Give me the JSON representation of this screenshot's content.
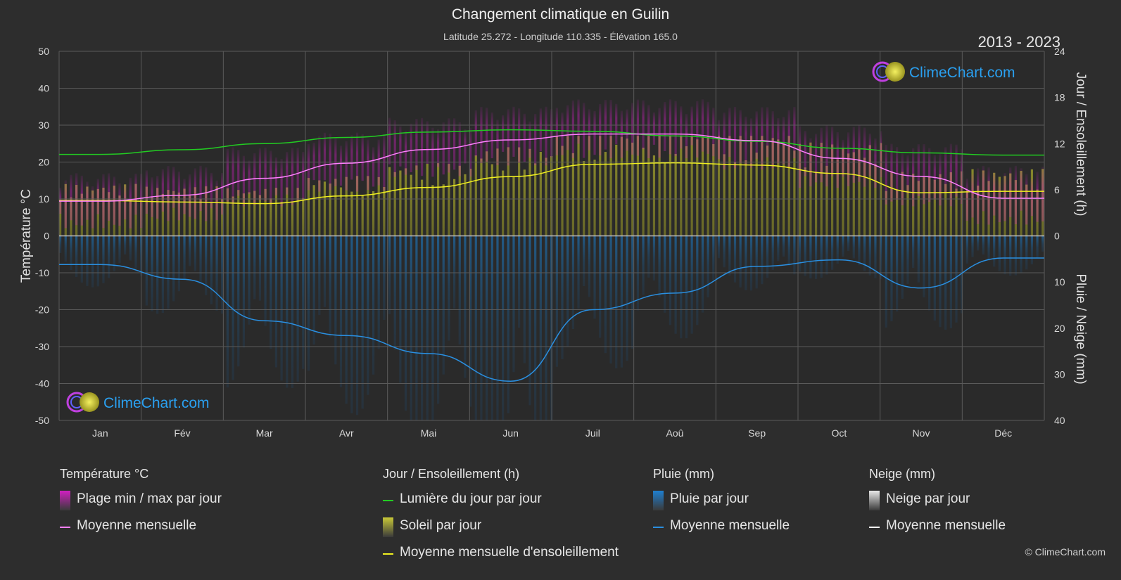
{
  "header": {
    "title": "Changement climatique en Guilin",
    "subtitle": "Latitude 25.272 - Longitude 110.335 - Élévation 165.0",
    "years": "2013 - 2023"
  },
  "brand": {
    "logo_text": "ClimeChart.com",
    "copyright": "© ClimeChart.com"
  },
  "colors": {
    "background": "#2d2d2d",
    "temp_range": "#d020c0",
    "temp_mean": "#ff80ff",
    "daylight": "#22cc22",
    "sunshine_fill": "#9a9a30",
    "sunshine_mean": "#f0f020",
    "rain_fill": "#1f5f8f",
    "rain_mean": "#2a8fe0",
    "snow_mean": "#ffffff"
  },
  "chart_data": {
    "type": "line",
    "x_label_months": [
      "Jan",
      "Fév",
      "Mar",
      "Avr",
      "Mai",
      "Jun",
      "Juil",
      "Aoû",
      "Sep",
      "Oct",
      "Nov",
      "Déc"
    ],
    "axes": {
      "left": {
        "label": "Température °C",
        "range": [
          -50,
          50
        ],
        "ticks": [
          50,
          40,
          30,
          20,
          10,
          0,
          -10,
          -20,
          -30,
          -40,
          -50
        ]
      },
      "right_top": {
        "label": "Jour / Ensoleillement (h)",
        "range": [
          0,
          24
        ],
        "ticks": [
          24,
          18,
          12,
          6,
          0
        ]
      },
      "right_bottom": {
        "label": "Pluie / Neige (mm)",
        "range": [
          0,
          40
        ],
        "ticks": [
          10,
          20,
          30,
          40
        ]
      }
    },
    "series": [
      {
        "name": "Lumière du jour par jour",
        "unit": "h",
        "values": [
          10.6,
          11.2,
          12.0,
          12.8,
          13.5,
          13.8,
          13.6,
          13.0,
          12.3,
          11.4,
          10.8,
          10.5
        ]
      },
      {
        "name": "Moyenne mensuelle",
        "group": "Température",
        "unit": "°C",
        "values": [
          9.4,
          11.0,
          15.6,
          19.7,
          23.4,
          26.0,
          27.6,
          27.6,
          25.8,
          21.0,
          16.1,
          10.2
        ]
      },
      {
        "name": "Moyenne mensuelle d'ensoleillement",
        "unit": "h",
        "values": [
          4.6,
          4.4,
          4.2,
          5.2,
          6.3,
          7.7,
          9.3,
          9.5,
          9.2,
          8.1,
          5.6,
          5.8
        ]
      },
      {
        "name": "Moyenne mensuelle",
        "group": "Pluie",
        "unit": "mm",
        "values": [
          6.2,
          9.4,
          18.4,
          21.6,
          25.5,
          31.5,
          16.0,
          12.4,
          6.6,
          5.2,
          11.3,
          4.8
        ]
      }
    ],
    "temp_daily_range_band": {
      "min": [
        6,
        8,
        12,
        16,
        20,
        23,
        25,
        25,
        22,
        17,
        12,
        7
      ],
      "max": [
        13,
        15,
        20,
        24,
        28,
        31,
        33,
        33,
        31,
        26,
        21,
        15
      ]
    },
    "sunshine_daily_band": {
      "values": [
        4.5,
        4.3,
        4.2,
        5.2,
        6.3,
        7.7,
        9.3,
        9.5,
        9.2,
        8.1,
        5.6,
        5.8
      ]
    }
  },
  "legend": {
    "groups": [
      {
        "title": "Température °C",
        "items": [
          {
            "label": "Plage min / max par jour",
            "kind": "box",
            "color": "#d020c0"
          },
          {
            "label": "Moyenne mensuelle",
            "kind": "line",
            "color": "#ff80ff"
          }
        ]
      },
      {
        "title": "Jour / Ensoleillement (h)",
        "items": [
          {
            "label": "Lumière du jour par jour",
            "kind": "line",
            "color": "#22cc22"
          },
          {
            "label": "Soleil par jour",
            "kind": "box",
            "color": "#c8c838"
          },
          {
            "label": "Moyenne mensuelle d'ensoleillement",
            "kind": "line",
            "color": "#f0f020"
          }
        ]
      },
      {
        "title": "Pluie (mm)",
        "items": [
          {
            "label": "Pluie par jour",
            "kind": "box",
            "color": "#1e7fd0"
          },
          {
            "label": "Moyenne mensuelle",
            "kind": "line",
            "color": "#2a8fe0"
          }
        ]
      },
      {
        "title": "Neige (mm)",
        "items": [
          {
            "label": "Neige par jour",
            "kind": "box",
            "color": "#e8e8e8"
          },
          {
            "label": "Moyenne mensuelle",
            "kind": "line",
            "color": "#ffffff"
          }
        ]
      }
    ]
  }
}
